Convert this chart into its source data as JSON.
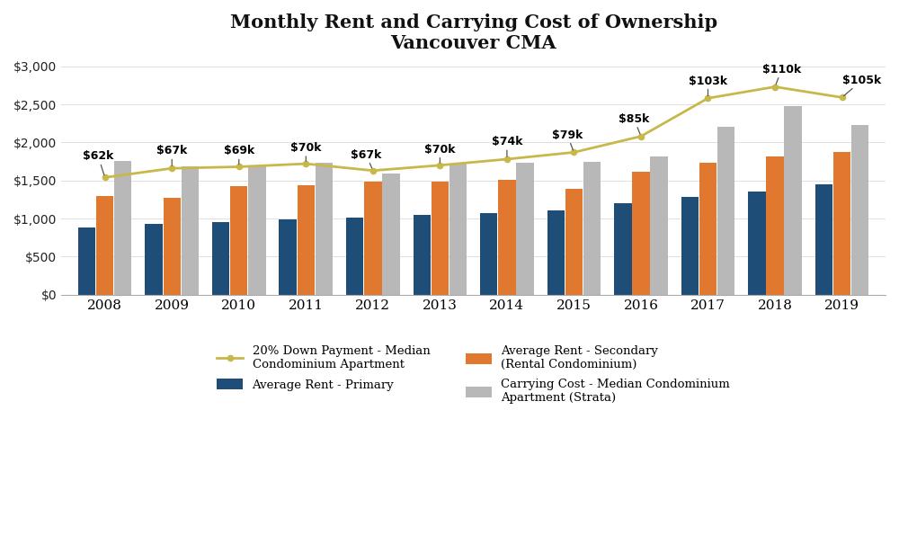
{
  "title": "Monthly Rent and Carrying Cost of Ownership\nVancouver CMA",
  "years": [
    2008,
    2009,
    2010,
    2011,
    2012,
    2013,
    2014,
    2015,
    2016,
    2017,
    2018,
    2019
  ],
  "avg_rent_primary": [
    880,
    930,
    950,
    990,
    1010,
    1050,
    1070,
    1110,
    1200,
    1280,
    1350,
    1450
  ],
  "avg_rent_secondary": [
    1300,
    1270,
    1430,
    1440,
    1480,
    1490,
    1510,
    1390,
    1610,
    1730,
    1820,
    1870
  ],
  "carrying_cost": [
    1760,
    1680,
    1700,
    1730,
    1590,
    1720,
    1730,
    1740,
    1820,
    2200,
    2480,
    2230
  ],
  "down_payment_line": [
    1540,
    1660,
    1680,
    1720,
    1630,
    1700,
    1780,
    1870,
    2080,
    2580,
    2730,
    2590
  ],
  "down_payment_labels": [
    "$62k",
    "$67k",
    "$69k",
    "$70k",
    "$67k",
    "$70k",
    "$74k",
    "$79k",
    "$85k",
    "$103k",
    "$110k",
    "$105k"
  ],
  "annot_offsets_x": [
    -0.1,
    0.0,
    0.0,
    0.0,
    -0.1,
    0.0,
    0.0,
    -0.1,
    -0.1,
    0.0,
    0.1,
    0.3
  ],
  "annot_offsets_y": [
    200,
    150,
    130,
    130,
    130,
    130,
    150,
    150,
    150,
    150,
    150,
    150
  ],
  "color_primary": "#1e4d78",
  "color_secondary": "#e07830",
  "color_carrying": "#b8b8b8",
  "color_line": "#c8b84a",
  "color_line_marker": "#c8b84a",
  "ylim": [
    0,
    3000
  ],
  "yticks": [
    0,
    500,
    1000,
    1500,
    2000,
    2500,
    3000
  ],
  "background_color": "#ffffff",
  "legend_labels": [
    "Average Rent - Primary",
    "Average Rent - Secondary\n(Rental Condominium)",
    "Carrying Cost - Median Condominium\nApartment (Strata)",
    "20% Down Payment - Median\nCondominium Apartment"
  ]
}
